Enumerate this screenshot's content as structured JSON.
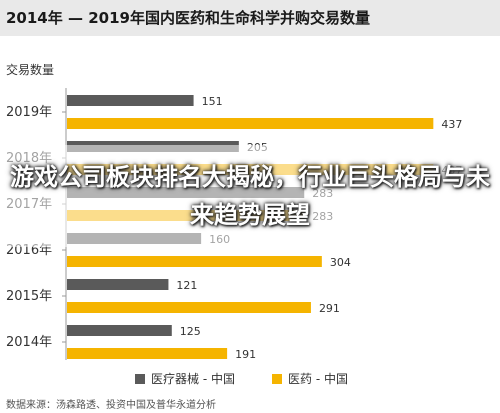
{
  "title": "2014年 — 2019年国内医药和生命科学并购交易数量",
  "ylabel": "交易数量",
  "source": "数据来源：汤森路透、投资中国及普华永道分析",
  "overlay_headline": "游戏公司板块排名大揭秘，行业巨头格局与未来趋势展望",
  "chart_data": {
    "type": "bar",
    "orientation": "horizontal",
    "categories": [
      "2019年",
      "2018年",
      "2017年",
      "2016年",
      "2015年",
      "2014年"
    ],
    "series": [
      {
        "name": "医疗器械 - 中国",
        "color": "#5a5a5a",
        "values": [
          151,
          205,
          283,
          160,
          121,
          125
        ]
      },
      {
        "name": "医药 - 中国",
        "color": "#f5b400",
        "values": [
          437,
          437,
          283,
          304,
          291,
          191
        ]
      }
    ],
    "xlim": [
      0,
      470
    ],
    "legend_position": "bottom"
  }
}
